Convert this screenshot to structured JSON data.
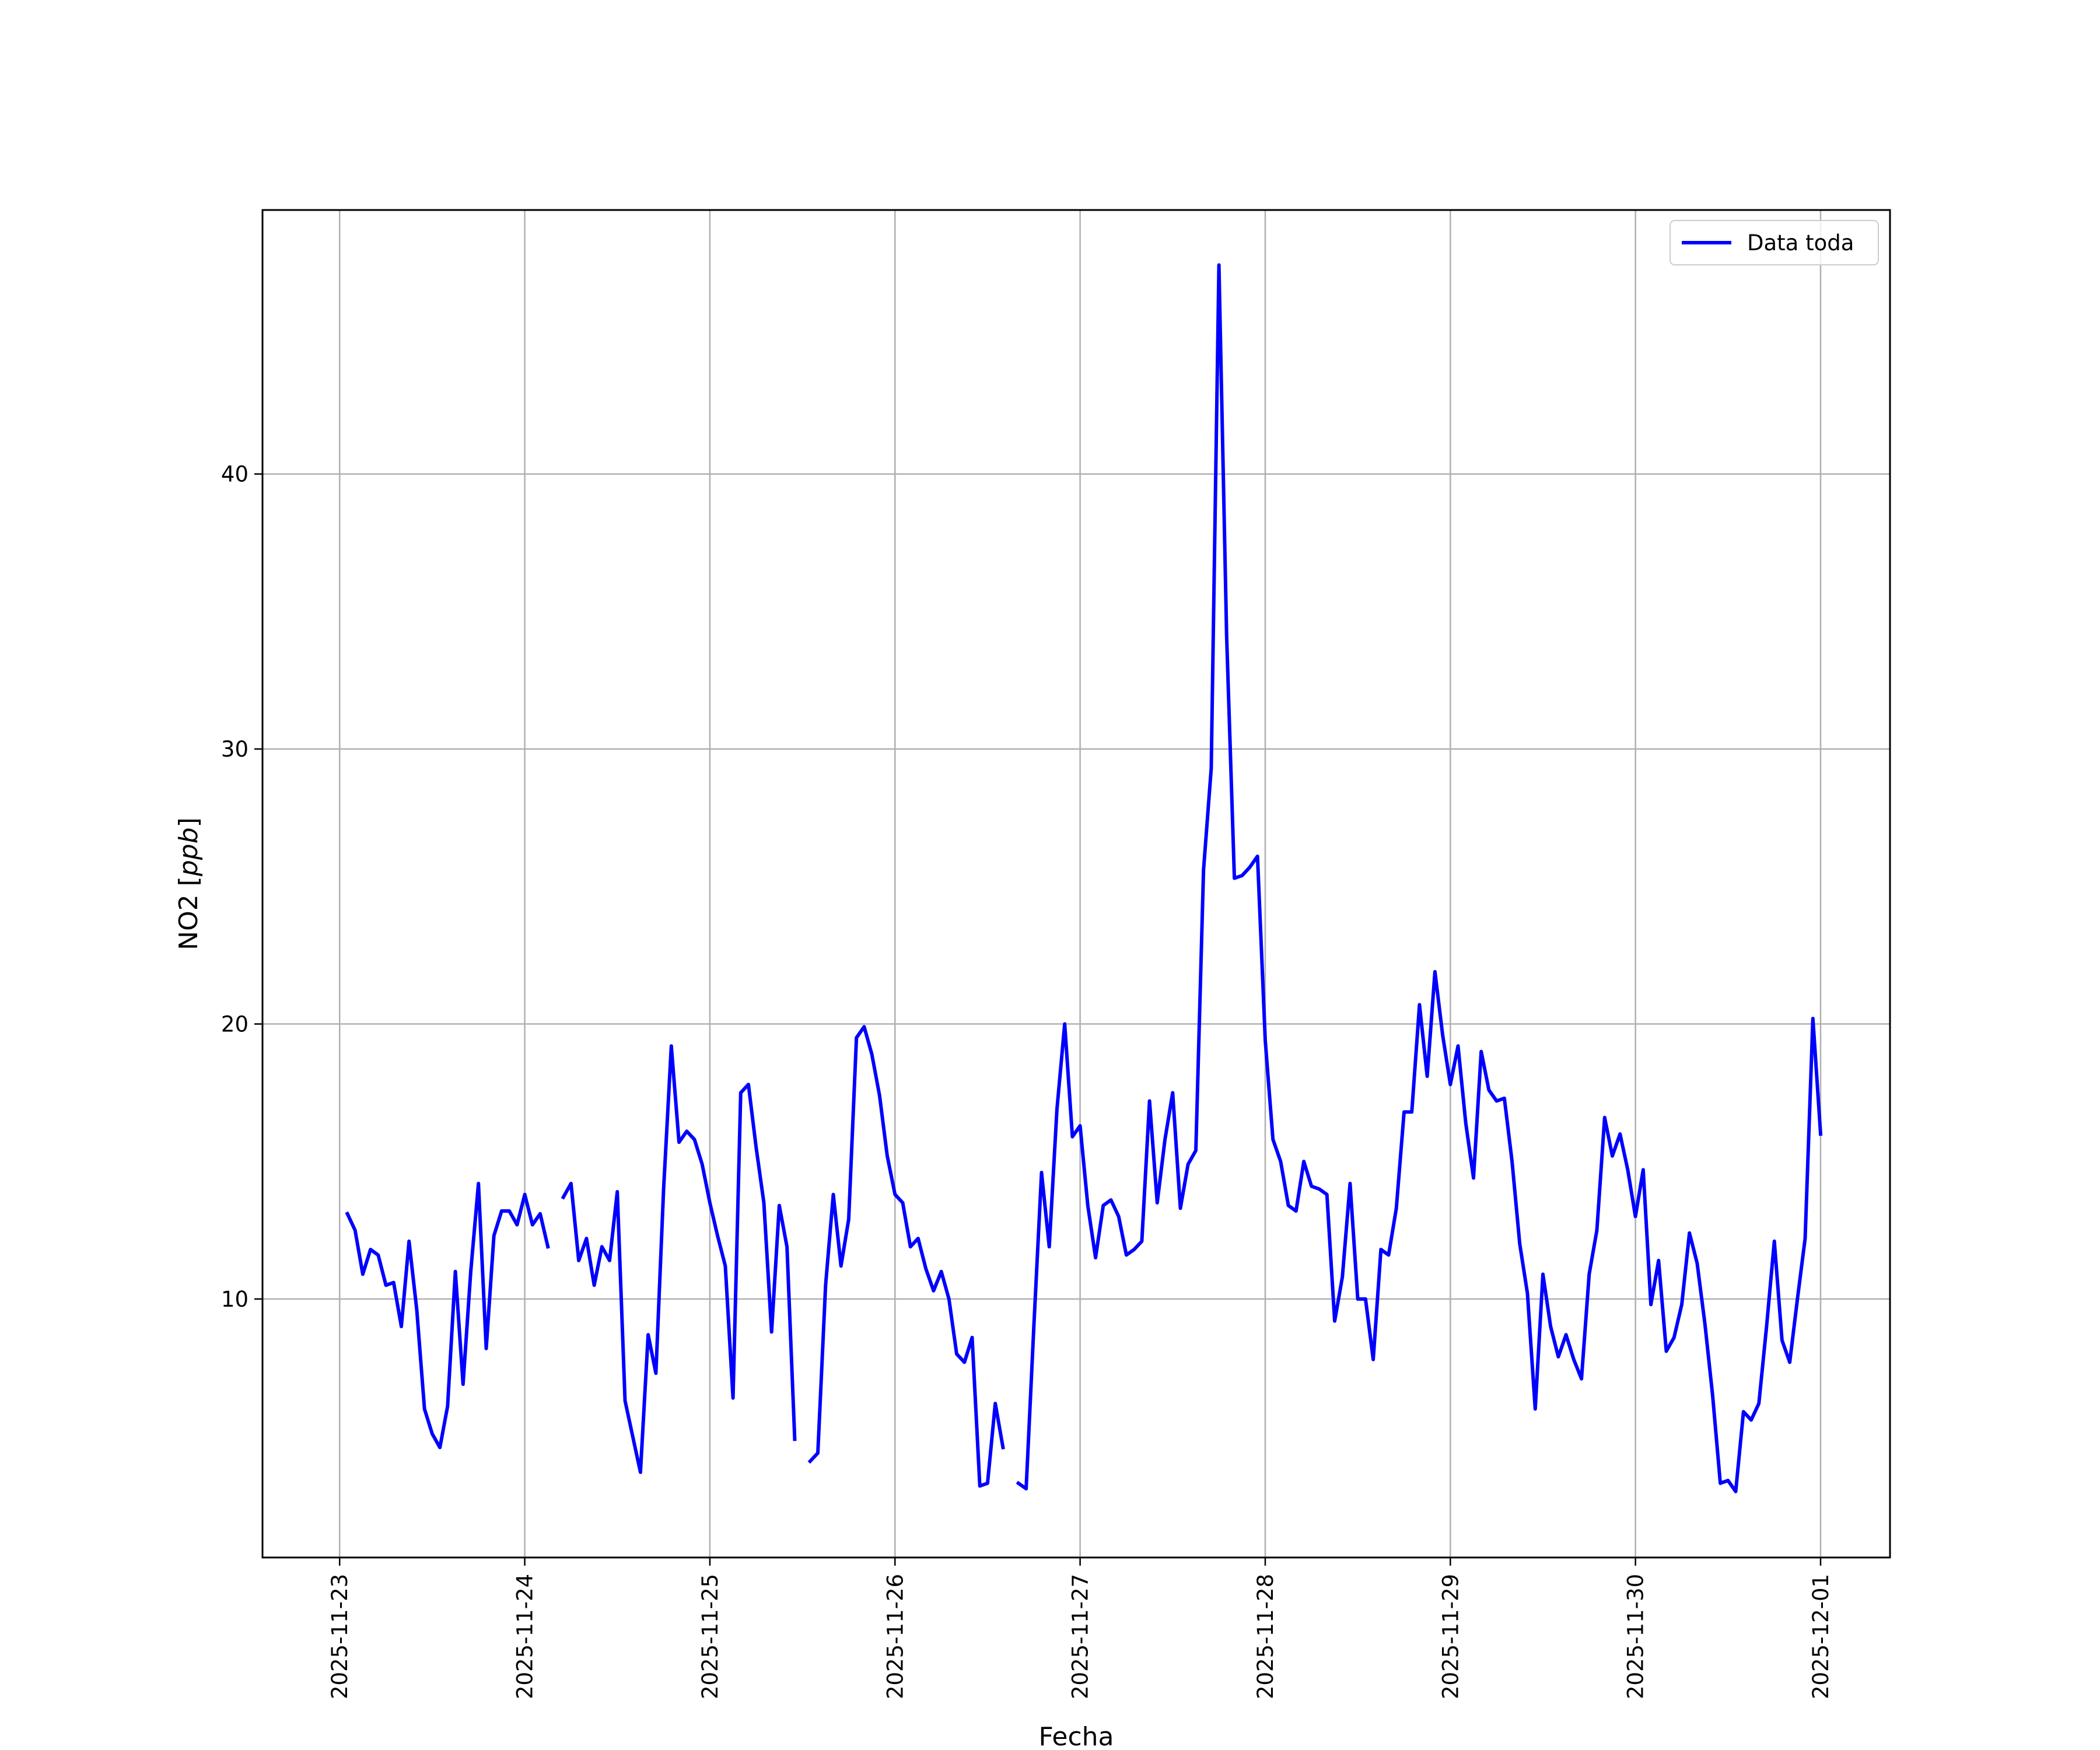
{
  "chart_data": {
    "type": "line",
    "xlabel": "Fecha",
    "ylabel_prefix": "NO2 [",
    "ylabel_unit": "ppb",
    "ylabel_suffix": "]",
    "x_ticks": [
      "2025-11-23",
      "2025-11-24",
      "2025-11-25",
      "2025-11-26",
      "2025-11-27",
      "2025-11-28",
      "2025-11-29",
      "2025-11-30",
      "2025-12-01"
    ],
    "y_ticks": [
      "10",
      "20",
      "30",
      "40"
    ],
    "xlim": [
      "2025-11-22T14:00",
      "2025-12-01T09:00"
    ],
    "ylim": [
      0.6,
      49.6
    ],
    "grid": true,
    "legend_position": "top-right",
    "series": [
      {
        "name": "Data toda",
        "color": "#0000ff",
        "points": [
          [
            "2025-11-23T01:00",
            13.1
          ],
          [
            "2025-11-23T02:00",
            12.5
          ],
          [
            "2025-11-23T03:00",
            10.9
          ],
          [
            "2025-11-23T04:00",
            11.8
          ],
          [
            "2025-11-23T05:00",
            11.6
          ],
          [
            "2025-11-23T06:00",
            10.5
          ],
          [
            "2025-11-23T07:00",
            10.6
          ],
          [
            "2025-11-23T08:00",
            9.0
          ],
          [
            "2025-11-23T09:00",
            12.1
          ],
          [
            "2025-11-23T10:00",
            9.6
          ],
          [
            "2025-11-23T11:00",
            6.0
          ],
          [
            "2025-11-23T12:00",
            5.1
          ],
          [
            "2025-11-23T13:00",
            4.6
          ],
          [
            "2025-11-23T14:00",
            6.1
          ],
          [
            "2025-11-23T15:00",
            11.0
          ],
          [
            "2025-11-23T16:00",
            6.9
          ],
          [
            "2025-11-23T17:00",
            11.0
          ],
          [
            "2025-11-23T18:00",
            14.2
          ],
          [
            "2025-11-23T19:00",
            8.2
          ],
          [
            "2025-11-23T20:00",
            12.3
          ],
          [
            "2025-11-23T21:00",
            13.2
          ],
          [
            "2025-11-23T22:00",
            13.2
          ],
          [
            "2025-11-23T23:00",
            12.7
          ],
          [
            "2025-11-24T00:00",
            13.8
          ],
          [
            "2025-11-24T01:00",
            12.7
          ],
          [
            "2025-11-24T02:00",
            13.1
          ],
          [
            "2025-11-24T03:00",
            11.9
          ],
          null,
          [
            "2025-11-24T05:00",
            13.7
          ],
          [
            "2025-11-24T06:00",
            14.2
          ],
          [
            "2025-11-24T07:00",
            11.4
          ],
          [
            "2025-11-24T08:00",
            12.2
          ],
          [
            "2025-11-24T09:00",
            10.5
          ],
          [
            "2025-11-24T10:00",
            11.9
          ],
          [
            "2025-11-24T11:00",
            11.4
          ],
          [
            "2025-11-24T12:00",
            13.9
          ],
          [
            "2025-11-24T13:00",
            6.3
          ],
          [
            "2025-11-24T14:00",
            5.0
          ],
          [
            "2025-11-24T15:00",
            3.7
          ],
          [
            "2025-11-24T16:00",
            8.7
          ],
          [
            "2025-11-24T17:00",
            7.3
          ],
          [
            "2025-11-24T18:00",
            14.0
          ],
          [
            "2025-11-24T19:00",
            19.2
          ],
          [
            "2025-11-24T20:00",
            15.7
          ],
          [
            "2025-11-24T21:00",
            16.1
          ],
          [
            "2025-11-24T22:00",
            15.8
          ],
          [
            "2025-11-24T23:00",
            14.9
          ],
          [
            "2025-11-25T00:00",
            13.5
          ],
          [
            "2025-11-25T01:00",
            12.3
          ],
          [
            "2025-11-25T02:00",
            11.2
          ],
          [
            "2025-11-25T03:00",
            6.4
          ],
          [
            "2025-11-25T04:00",
            17.5
          ],
          [
            "2025-11-25T05:00",
            17.8
          ],
          [
            "2025-11-25T06:00",
            15.5
          ],
          [
            "2025-11-25T07:00",
            13.5
          ],
          [
            "2025-11-25T08:00",
            8.8
          ],
          [
            "2025-11-25T09:00",
            13.4
          ],
          [
            "2025-11-25T10:00",
            11.9
          ],
          [
            "2025-11-25T11:00",
            4.9
          ],
          null,
          [
            "2025-11-25T13:00",
            4.1
          ],
          [
            "2025-11-25T14:00",
            4.4
          ],
          [
            "2025-11-25T15:00",
            10.5
          ],
          [
            "2025-11-25T16:00",
            13.8
          ],
          [
            "2025-11-25T17:00",
            11.2
          ],
          [
            "2025-11-25T18:00",
            12.9
          ],
          [
            "2025-11-25T19:00",
            19.5
          ],
          [
            "2025-11-25T20:00",
            19.9
          ],
          [
            "2025-11-25T21:00",
            18.9
          ],
          [
            "2025-11-25T22:00",
            17.4
          ],
          [
            "2025-11-25T23:00",
            15.2
          ],
          [
            "2025-11-26T00:00",
            13.8
          ],
          [
            "2025-11-26T01:00",
            13.5
          ],
          [
            "2025-11-26T02:00",
            11.9
          ],
          [
            "2025-11-26T03:00",
            12.2
          ],
          [
            "2025-11-26T04:00",
            11.1
          ],
          [
            "2025-11-26T05:00",
            10.3
          ],
          [
            "2025-11-26T06:00",
            11.0
          ],
          [
            "2025-11-26T07:00",
            10.0
          ],
          [
            "2025-11-26T08:00",
            8.0
          ],
          [
            "2025-11-26T09:00",
            7.7
          ],
          [
            "2025-11-26T10:00",
            8.6
          ],
          [
            "2025-11-26T11:00",
            3.2
          ],
          [
            "2025-11-26T12:00",
            3.3
          ],
          [
            "2025-11-26T13:00",
            6.2
          ],
          [
            "2025-11-26T14:00",
            4.6
          ],
          null,
          [
            "2025-11-26T16:00",
            3.3
          ],
          [
            "2025-11-26T17:00",
            3.1
          ],
          [
            "2025-11-26T18:00",
            9.0
          ],
          [
            "2025-11-26T19:00",
            14.6
          ],
          [
            "2025-11-26T20:00",
            11.9
          ],
          [
            "2025-11-26T21:00",
            16.9
          ],
          [
            "2025-11-26T22:00",
            20.0
          ],
          [
            "2025-11-26T23:00",
            15.9
          ],
          [
            "2025-11-27T00:00",
            16.3
          ],
          [
            "2025-11-27T01:00",
            13.4
          ],
          [
            "2025-11-27T02:00",
            11.5
          ],
          [
            "2025-11-27T03:00",
            13.4
          ],
          [
            "2025-11-27T04:00",
            13.6
          ],
          [
            "2025-11-27T05:00",
            13.0
          ],
          [
            "2025-11-27T06:00",
            11.6
          ],
          [
            "2025-11-27T07:00",
            11.8
          ],
          [
            "2025-11-27T08:00",
            12.1
          ],
          [
            "2025-11-27T09:00",
            17.2
          ],
          [
            "2025-11-27T10:00",
            13.5
          ],
          [
            "2025-11-27T11:00",
            15.8
          ],
          [
            "2025-11-27T12:00",
            17.5
          ],
          [
            "2025-11-27T13:00",
            13.3
          ],
          [
            "2025-11-27T14:00",
            14.9
          ],
          [
            "2025-11-27T15:00",
            15.4
          ],
          [
            "2025-11-27T16:00",
            25.6
          ],
          [
            "2025-11-27T17:00",
            29.3
          ],
          [
            "2025-11-27T18:00",
            47.6
          ],
          [
            "2025-11-27T19:00",
            34.1
          ],
          [
            "2025-11-27T20:00",
            25.3
          ],
          [
            "2025-11-27T21:00",
            25.4
          ],
          [
            "2025-11-27T22:00",
            25.7
          ],
          [
            "2025-11-27T23:00",
            26.1
          ],
          [
            "2025-11-28T00:00",
            19.4
          ],
          [
            "2025-11-28T01:00",
            15.8
          ],
          [
            "2025-11-28T02:00",
            15.0
          ],
          [
            "2025-11-28T03:00",
            13.4
          ],
          [
            "2025-11-28T04:00",
            13.2
          ],
          [
            "2025-11-28T05:00",
            15.0
          ],
          [
            "2025-11-28T06:00",
            14.1
          ],
          [
            "2025-11-28T07:00",
            14.0
          ],
          [
            "2025-11-28T08:00",
            13.8
          ],
          [
            "2025-11-28T09:00",
            9.2
          ],
          [
            "2025-11-28T10:00",
            10.8
          ],
          [
            "2025-11-28T11:00",
            14.2
          ],
          [
            "2025-11-28T12:00",
            10.0
          ],
          [
            "2025-11-28T13:00",
            10.0
          ],
          [
            "2025-11-28T14:00",
            7.8
          ],
          [
            "2025-11-28T15:00",
            11.8
          ],
          [
            "2025-11-28T16:00",
            11.6
          ],
          [
            "2025-11-28T17:00",
            13.3
          ],
          [
            "2025-11-28T18:00",
            16.8
          ],
          [
            "2025-11-28T19:00",
            16.8
          ],
          [
            "2025-11-28T20:00",
            20.7
          ],
          [
            "2025-11-28T21:00",
            18.1
          ],
          [
            "2025-11-28T22:00",
            21.9
          ],
          [
            "2025-11-28T23:00",
            19.6
          ],
          [
            "2025-11-29T00:00",
            17.8
          ],
          [
            "2025-11-29T01:00",
            19.2
          ],
          [
            "2025-11-29T02:00",
            16.4
          ],
          [
            "2025-11-29T03:00",
            14.4
          ],
          [
            "2025-11-29T04:00",
            19.0
          ],
          [
            "2025-11-29T05:00",
            17.6
          ],
          [
            "2025-11-29T06:00",
            17.2
          ],
          [
            "2025-11-29T07:00",
            17.3
          ],
          [
            "2025-11-29T08:00",
            15.0
          ],
          [
            "2025-11-29T09:00",
            12.0
          ],
          [
            "2025-11-29T10:00",
            10.2
          ],
          [
            "2025-11-29T11:00",
            6.0
          ],
          [
            "2025-11-29T12:00",
            10.9
          ],
          [
            "2025-11-29T13:00",
            9.0
          ],
          [
            "2025-11-29T14:00",
            7.9
          ],
          [
            "2025-11-29T15:00",
            8.7
          ],
          [
            "2025-11-29T16:00",
            7.8
          ],
          [
            "2025-11-29T17:00",
            7.1
          ],
          [
            "2025-11-29T18:00",
            10.9
          ],
          [
            "2025-11-29T19:00",
            12.5
          ],
          [
            "2025-11-29T20:00",
            16.6
          ],
          [
            "2025-11-29T21:00",
            15.2
          ],
          [
            "2025-11-29T22:00",
            16.0
          ],
          [
            "2025-11-29T23:00",
            14.7
          ],
          [
            "2025-11-30T00:00",
            13.0
          ],
          [
            "2025-11-30T01:00",
            14.7
          ],
          [
            "2025-11-30T02:00",
            9.8
          ],
          [
            "2025-11-30T03:00",
            11.4
          ],
          [
            "2025-11-30T04:00",
            8.1
          ],
          [
            "2025-11-30T05:00",
            8.6
          ],
          [
            "2025-11-30T06:00",
            9.8
          ],
          [
            "2025-11-30T07:00",
            12.4
          ],
          [
            "2025-11-30T08:00",
            11.3
          ],
          [
            "2025-11-30T09:00",
            9.1
          ],
          [
            "2025-11-30T10:00",
            6.5
          ],
          [
            "2025-11-30T11:00",
            3.3
          ],
          [
            "2025-11-30T12:00",
            3.4
          ],
          [
            "2025-11-30T13:00",
            3.0
          ],
          [
            "2025-11-30T14:00",
            5.9
          ],
          [
            "2025-11-30T15:00",
            5.6
          ],
          [
            "2025-11-30T16:00",
            6.2
          ],
          [
            "2025-11-30T17:00",
            9.0
          ],
          [
            "2025-11-30T18:00",
            12.1
          ],
          [
            "2025-11-30T19:00",
            8.5
          ],
          [
            "2025-11-30T20:00",
            7.7
          ],
          [
            "2025-11-30T21:00",
            10.0
          ],
          [
            "2025-11-30T22:00",
            12.2
          ],
          [
            "2025-11-30T23:00",
            20.2
          ],
          [
            "2025-12-01T00:00",
            16.0
          ]
        ]
      }
    ]
  }
}
